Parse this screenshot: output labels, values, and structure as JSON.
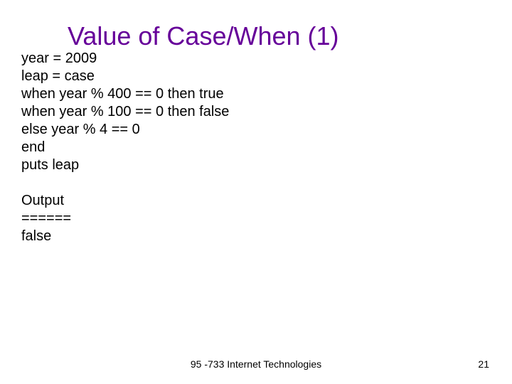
{
  "title": "Value of Case/When (1)",
  "code_lines": [
    "year = 2009",
    "leap = case",
    "when year % 400 == 0 then true",
    "when year % 100 == 0 then false",
    "else year % 4 == 0",
    "end",
    "puts leap",
    "",
    "Output",
    "======",
    "false"
  ],
  "footer": "95 -733 Internet Technologies",
  "page_number": "21",
  "colors": {
    "title_color": "#660099",
    "text_color": "#000000",
    "background": "#ffffff"
  },
  "typography": {
    "title_fontsize": 36,
    "body_fontsize": 20,
    "footer_fontsize": 14,
    "font_family": "Arial"
  }
}
